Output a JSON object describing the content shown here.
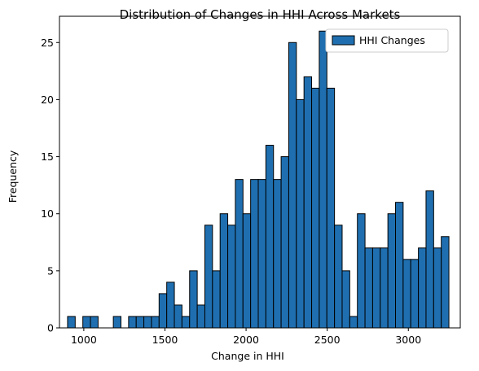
{
  "chart_data": {
    "type": "bar",
    "title": "Distribution of Changes in HHI Across Markets",
    "xlabel": "Change in HHI",
    "ylabel": "Frequency",
    "xlim": [
      850,
      3320
    ],
    "ylim": [
      0,
      27.3
    ],
    "x_ticks": [
      1000,
      1500,
      2000,
      2500,
      3000
    ],
    "y_ticks": [
      0,
      5,
      10,
      15,
      20,
      25
    ],
    "bin_start": 900,
    "bin_width": 47,
    "grid": false,
    "legend_position": "top-right",
    "series": [
      {
        "name": "HHI Changes",
        "color": "#1f6fb0",
        "edge_color": "#000000",
        "values": [
          1,
          0,
          1,
          1,
          0,
          0,
          1,
          0,
          1,
          1,
          1,
          1,
          3,
          4,
          2,
          1,
          5,
          2,
          9,
          5,
          10,
          9,
          13,
          10,
          13,
          13,
          16,
          13,
          15,
          25,
          20,
          22,
          21,
          26,
          21,
          9,
          5,
          1,
          10,
          7,
          7,
          7,
          10,
          11,
          6,
          6,
          7,
          12,
          7,
          8
        ]
      }
    ]
  }
}
